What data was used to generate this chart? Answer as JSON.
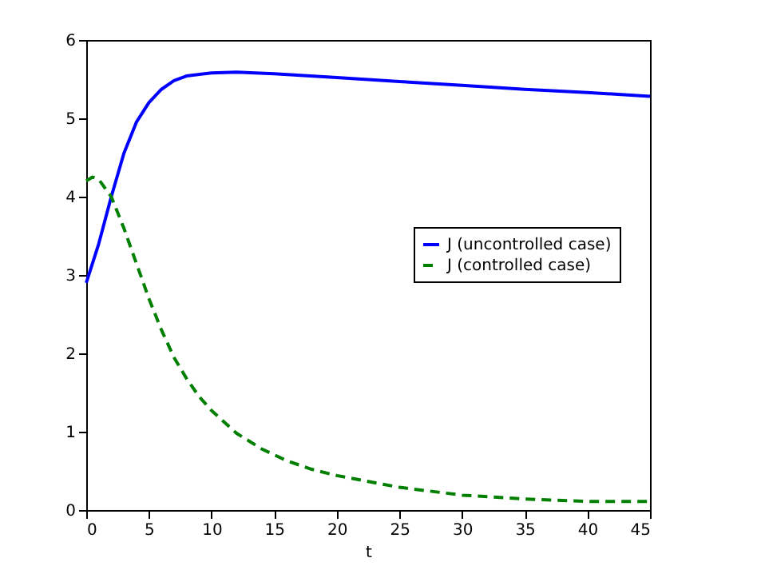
{
  "chart_data": {
    "type": "line",
    "xlabel": "t",
    "xlim": [
      0,
      45
    ],
    "ylim": [
      0,
      6
    ],
    "xticks": [
      0,
      5,
      10,
      15,
      20,
      25,
      30,
      35,
      40,
      45
    ],
    "yticks": [
      0,
      1,
      2,
      3,
      4,
      5,
      6
    ],
    "grid": false,
    "legend": "right",
    "series": [
      {
        "name": "J (uncontrolled case)",
        "color": "#0000ff",
        "line_style": "solid",
        "x": [
          0,
          1,
          2,
          3,
          4,
          5,
          6,
          7,
          8,
          10,
          12,
          15,
          20,
          25,
          30,
          35,
          40,
          45
        ],
        "values": [
          2.9,
          3.4,
          4.0,
          4.55,
          4.95,
          5.2,
          5.37,
          5.48,
          5.54,
          5.58,
          5.59,
          5.57,
          5.52,
          5.47,
          5.42,
          5.37,
          5.33,
          5.28
        ]
      },
      {
        "name": "J (controlled case)",
        "color": "#007f00",
        "line_style": "dashed",
        "x": [
          0,
          0.5,
          1,
          2,
          3,
          4,
          5,
          6,
          7,
          8,
          9,
          10,
          12,
          14,
          16,
          18,
          20,
          25,
          30,
          35,
          40,
          45
        ],
        "values": [
          4.2,
          4.25,
          4.22,
          4.0,
          3.6,
          3.15,
          2.7,
          2.3,
          1.95,
          1.68,
          1.45,
          1.27,
          0.98,
          0.78,
          0.63,
          0.52,
          0.44,
          0.29,
          0.19,
          0.14,
          0.11,
          0.11
        ]
      }
    ]
  }
}
